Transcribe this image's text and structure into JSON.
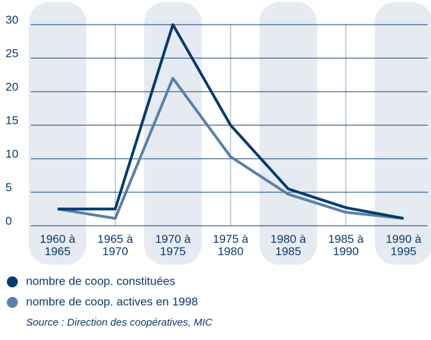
{
  "chart_data": {
    "type": "line",
    "categories": [
      "1960 à\n1965",
      "1965 à\n1970",
      "1970 à\n1975",
      "1975 à\n1980",
      "1980 à\n1985",
      "1985 à\n1990",
      "1990 à\n1995"
    ],
    "series": [
      {
        "name": "nombre de coop. constituées",
        "color": "#003a70",
        "values": [
          2.5,
          2.5,
          30,
          15,
          5.5,
          2.7,
          1.1
        ]
      },
      {
        "name": "nombre de coop. actives en 1998",
        "color": "#5a7fa9",
        "values": [
          2.5,
          1.1,
          22,
          10.3,
          4.7,
          2,
          1.1
        ]
      }
    ],
    "ylim": [
      0,
      30
    ],
    "yticks": [
      0,
      5,
      10,
      15,
      20,
      25,
      30
    ],
    "grid": true,
    "source": "Source : Direction des coopératives, MIC"
  }
}
